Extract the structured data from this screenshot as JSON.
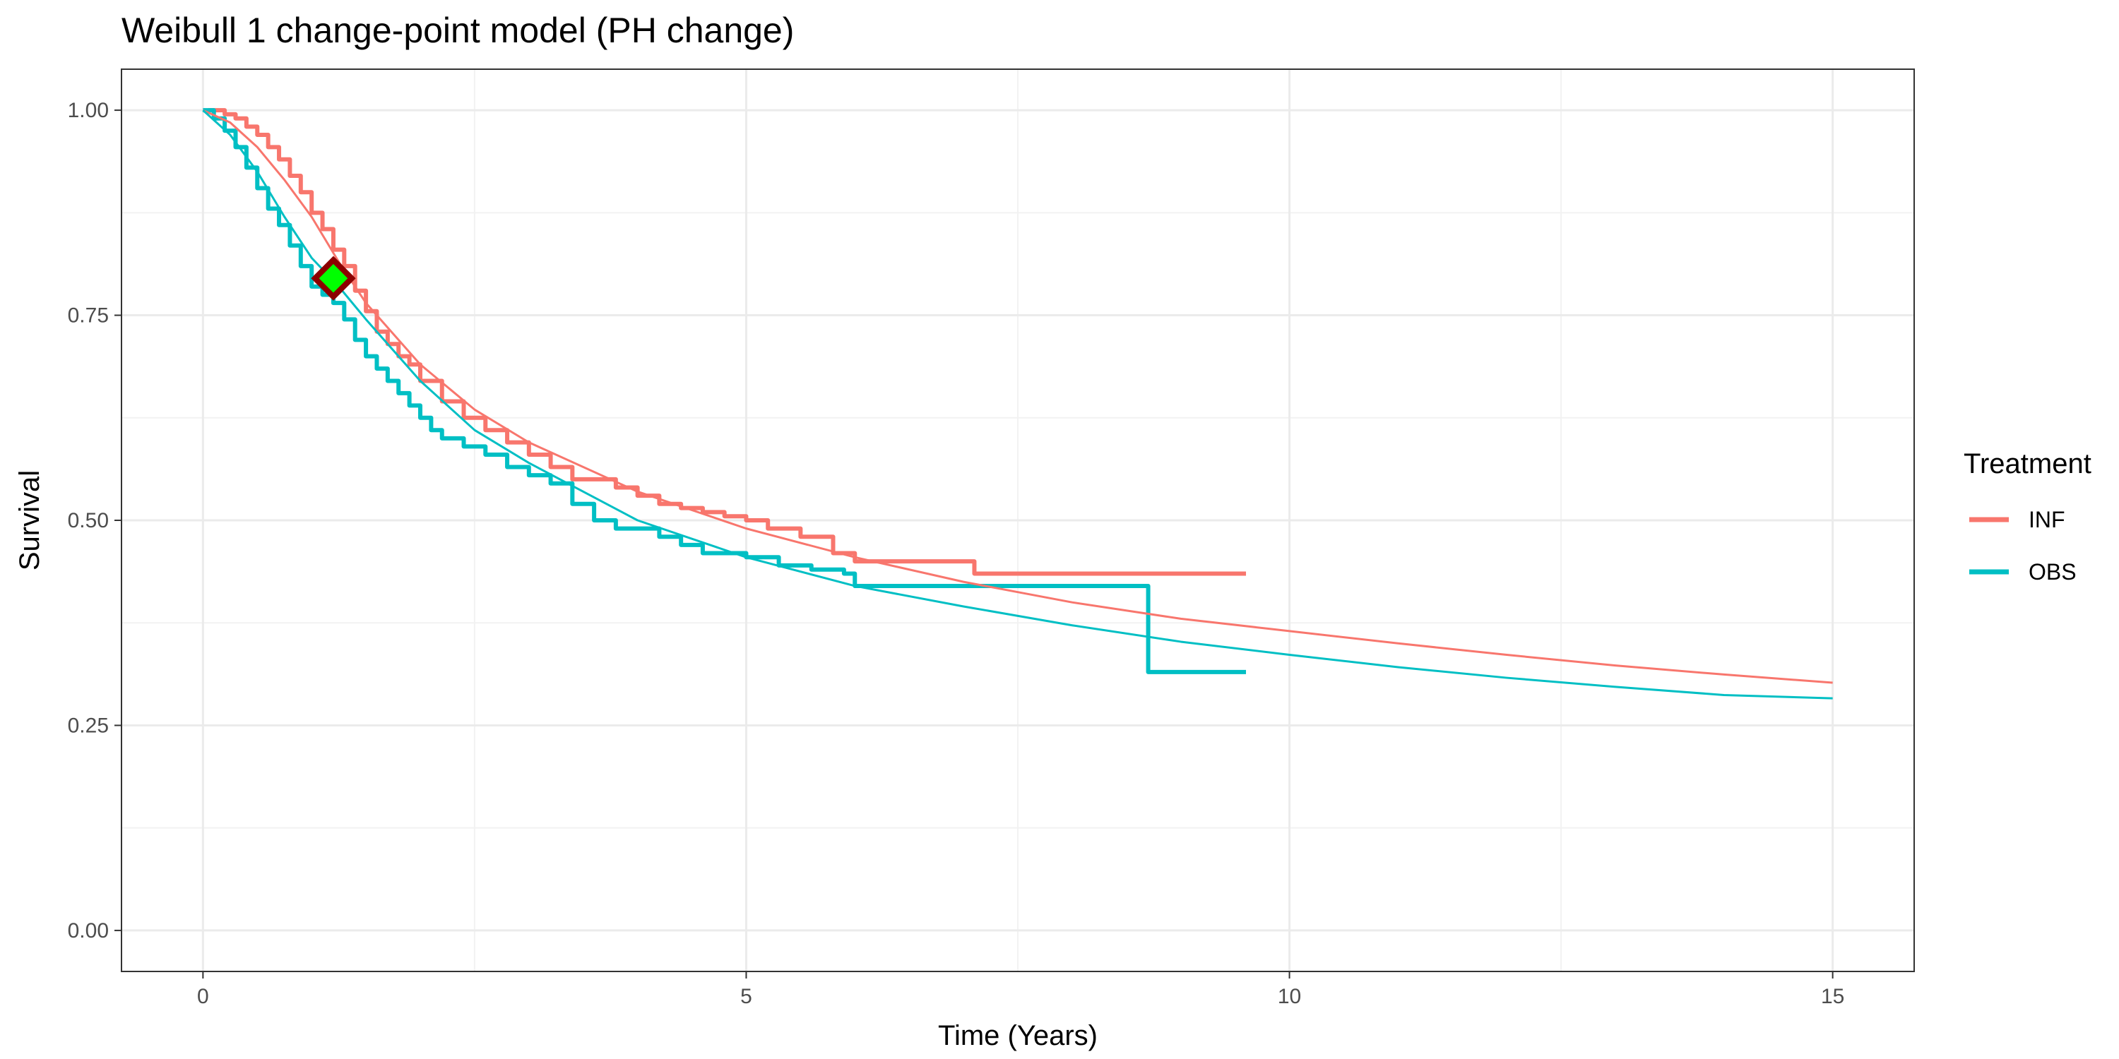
{
  "chart_data": {
    "type": "line",
    "title": "Weibull 1 change-point model (PH change)",
    "xlabel": "Time (Years)",
    "ylabel": "Survival",
    "xlim": [
      -0.75,
      15.75
    ],
    "ylim": [
      -0.05,
      1.05
    ],
    "x_ticks": [
      0,
      5,
      10,
      15
    ],
    "x_tick_labels": [
      "0",
      "5",
      "10",
      "15"
    ],
    "y_ticks": [
      0,
      0.25,
      0.5,
      0.75,
      1
    ],
    "y_tick_labels": [
      "0.00",
      "0.25",
      "0.50",
      "0.75",
      "1.00"
    ],
    "grid": true,
    "legend": {
      "title": "Treatment",
      "position": "right",
      "entries": [
        {
          "label": "INF",
          "color": "#F8766D"
        },
        {
          "label": "OBS",
          "color": "#00BFC4"
        }
      ]
    },
    "series": [
      {
        "name": "INF",
        "kind": "km-step",
        "color": "#F8766D",
        "x": [
          0.05,
          0.2,
          0.3,
          0.4,
          0.5,
          0.6,
          0.7,
          0.8,
          0.9,
          1.0,
          1.1,
          1.2,
          1.3,
          1.4,
          1.5,
          1.6,
          1.7,
          1.8,
          1.9,
          2.0,
          2.2,
          2.4,
          2.6,
          2.8,
          3.0,
          3.2,
          3.4,
          3.6,
          3.8,
          4.0,
          4.2,
          4.4,
          4.6,
          4.8,
          5.0,
          5.2,
          5.5,
          5.8,
          6.0,
          6.5,
          7.0,
          7.1,
          8.0,
          9.0,
          9.6
        ],
        "y": [
          1.0,
          0.995,
          0.99,
          0.98,
          0.97,
          0.955,
          0.94,
          0.92,
          0.9,
          0.875,
          0.855,
          0.83,
          0.81,
          0.78,
          0.755,
          0.73,
          0.715,
          0.7,
          0.69,
          0.67,
          0.645,
          0.625,
          0.61,
          0.595,
          0.58,
          0.565,
          0.55,
          0.55,
          0.54,
          0.53,
          0.52,
          0.515,
          0.51,
          0.505,
          0.5,
          0.49,
          0.48,
          0.46,
          0.45,
          0.45,
          0.45,
          0.435,
          0.435,
          0.435,
          0.435
        ]
      },
      {
        "name": "OBS",
        "kind": "km-step",
        "color": "#00BFC4",
        "x": [
          0.0,
          0.1,
          0.2,
          0.3,
          0.4,
          0.5,
          0.6,
          0.7,
          0.8,
          0.9,
          1.0,
          1.1,
          1.2,
          1.3,
          1.4,
          1.5,
          1.6,
          1.7,
          1.8,
          1.9,
          2.0,
          2.1,
          2.2,
          2.4,
          2.6,
          2.8,
          3.0,
          3.2,
          3.4,
          3.6,
          3.8,
          4.0,
          4.2,
          4.4,
          4.6,
          4.8,
          5.0,
          5.3,
          5.6,
          5.9,
          6.0,
          7.0,
          8.0,
          8.7,
          9.0,
          9.6
        ],
        "y": [
          1.0,
          0.99,
          0.975,
          0.955,
          0.93,
          0.905,
          0.88,
          0.86,
          0.835,
          0.81,
          0.785,
          0.775,
          0.765,
          0.745,
          0.72,
          0.7,
          0.685,
          0.67,
          0.655,
          0.64,
          0.625,
          0.61,
          0.6,
          0.59,
          0.58,
          0.565,
          0.555,
          0.545,
          0.52,
          0.5,
          0.49,
          0.49,
          0.48,
          0.47,
          0.46,
          0.46,
          0.455,
          0.445,
          0.44,
          0.435,
          0.42,
          0.42,
          0.42,
          0.315,
          0.315,
          0.315
        ]
      },
      {
        "name": "INF",
        "kind": "fitted",
        "color": "#F8766D",
        "x": [
          0,
          0.25,
          0.5,
          0.75,
          1.0,
          1.25,
          1.5,
          2.0,
          2.5,
          3.0,
          4.0,
          5.0,
          6.0,
          7.0,
          8.0,
          9.0,
          10.0,
          11.0,
          12.0,
          13.0,
          14.0,
          15.0
        ],
        "y": [
          1.0,
          0.985,
          0.955,
          0.915,
          0.87,
          0.815,
          0.765,
          0.69,
          0.635,
          0.595,
          0.535,
          0.49,
          0.455,
          0.425,
          0.4,
          0.38,
          0.365,
          0.35,
          0.336,
          0.323,
          0.312,
          0.302
        ]
      },
      {
        "name": "OBS",
        "kind": "fitted",
        "color": "#00BFC4",
        "x": [
          0,
          0.25,
          0.5,
          0.75,
          1.0,
          1.25,
          1.5,
          2.0,
          2.5,
          3.0,
          4.0,
          5.0,
          6.0,
          7.0,
          8.0,
          9.0,
          10.0,
          11.0,
          12.0,
          13.0,
          14.0,
          15.0
        ],
        "y": [
          1.0,
          0.97,
          0.925,
          0.87,
          0.82,
          0.785,
          0.745,
          0.67,
          0.61,
          0.57,
          0.5,
          0.455,
          0.42,
          0.395,
          0.372,
          0.352,
          0.336,
          0.321,
          0.308,
          0.297,
          0.287,
          0.283
        ]
      }
    ],
    "annotations": [
      {
        "type": "change-point-marker",
        "x": 1.2,
        "y": 0.795,
        "fill": "#00FF00",
        "stroke": "#8B0000"
      }
    ]
  }
}
